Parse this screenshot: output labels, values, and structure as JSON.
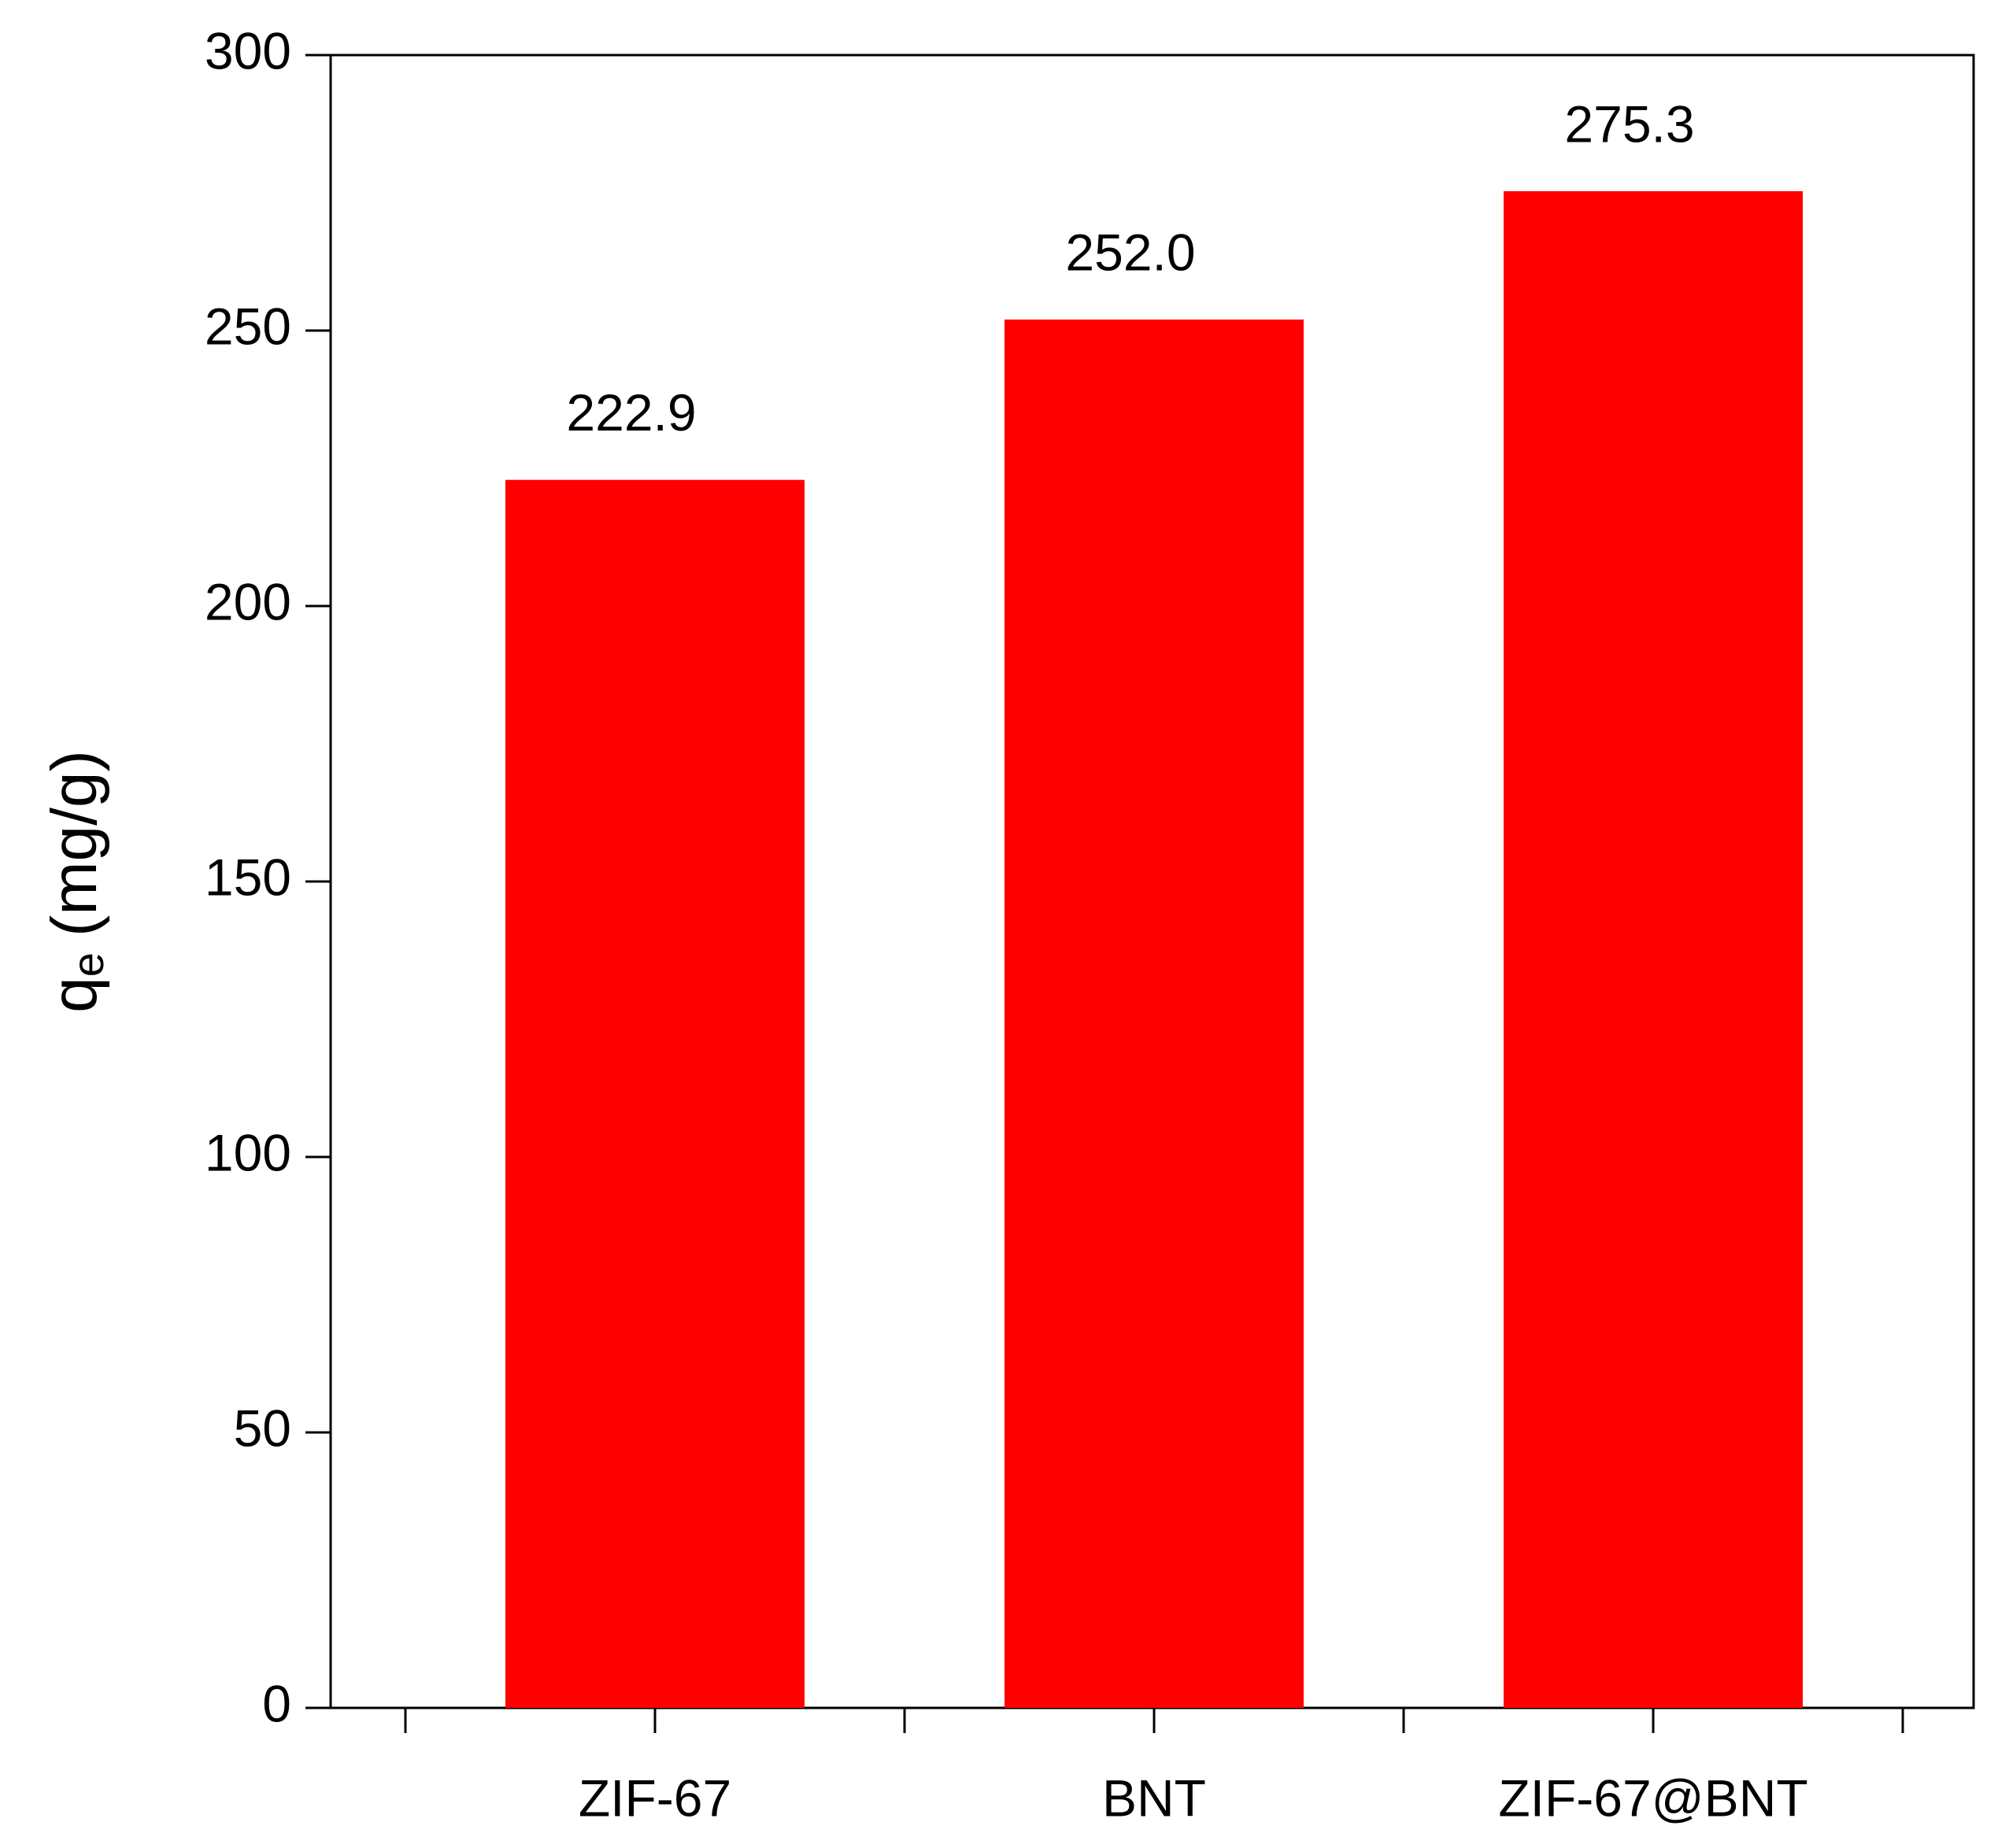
{
  "chart_data": {
    "type": "bar",
    "y_label": [
      "q",
      "e",
      "(mg/g)"
    ],
    "categories": [
      "ZIF-67",
      "BNT",
      "ZIF-67@BNT"
    ],
    "values": [
      222.9,
      252.0,
      275.3
    ],
    "value_labels": [
      "222.9",
      "252.0",
      "275.3"
    ],
    "color": "#ff0000",
    "ylim": [
      0,
      300
    ],
    "yticks": [
      0,
      50,
      100,
      150,
      200,
      250,
      300
    ]
  }
}
